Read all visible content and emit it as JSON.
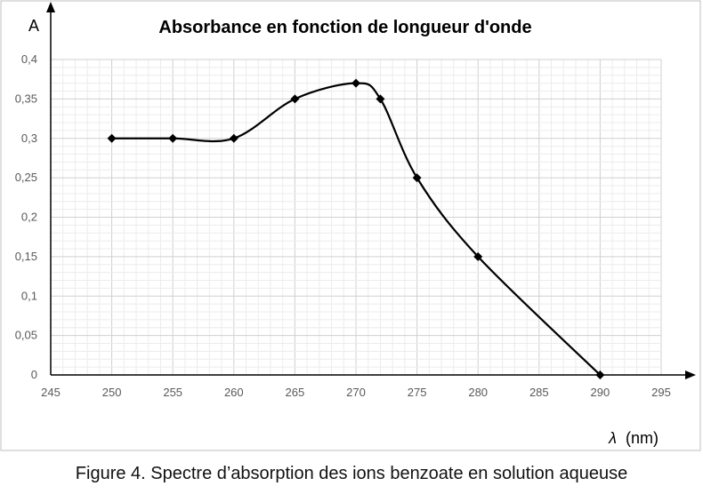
{
  "chart_data": {
    "type": "line",
    "title": "Absorbance en fonction de longueur d'onde",
    "ylabel": "A",
    "xlabel_symbol": "λ",
    "xlabel_unit": "(nm)",
    "xlim": [
      245,
      295
    ],
    "ylim": [
      0,
      0.4
    ],
    "x_ticks": [
      "245",
      "250",
      "255",
      "260",
      "265",
      "270",
      "275",
      "280",
      "285",
      "290",
      "295"
    ],
    "y_ticks": [
      "0",
      "0,05",
      "0,1",
      "0,15",
      "0,2",
      "0,25",
      "0,3",
      "0,35",
      "0,4"
    ],
    "grid": true,
    "marker": "diamond",
    "smooth": true,
    "series": [
      {
        "x": [
          250,
          255,
          260,
          265,
          270,
          272,
          275,
          280,
          290
        ],
        "y": [
          0.3,
          0.3,
          0.3,
          0.35,
          0.37,
          0.35,
          0.25,
          0.15,
          0
        ]
      }
    ],
    "colors": {
      "line": "#000000",
      "major_grid": "#d0d0d0",
      "minor_grid": "#ececec",
      "frame": "#bfbfbf"
    }
  },
  "caption": "Figure 4. Spectre d’absorption des ions benzoate en solution aqueuse"
}
